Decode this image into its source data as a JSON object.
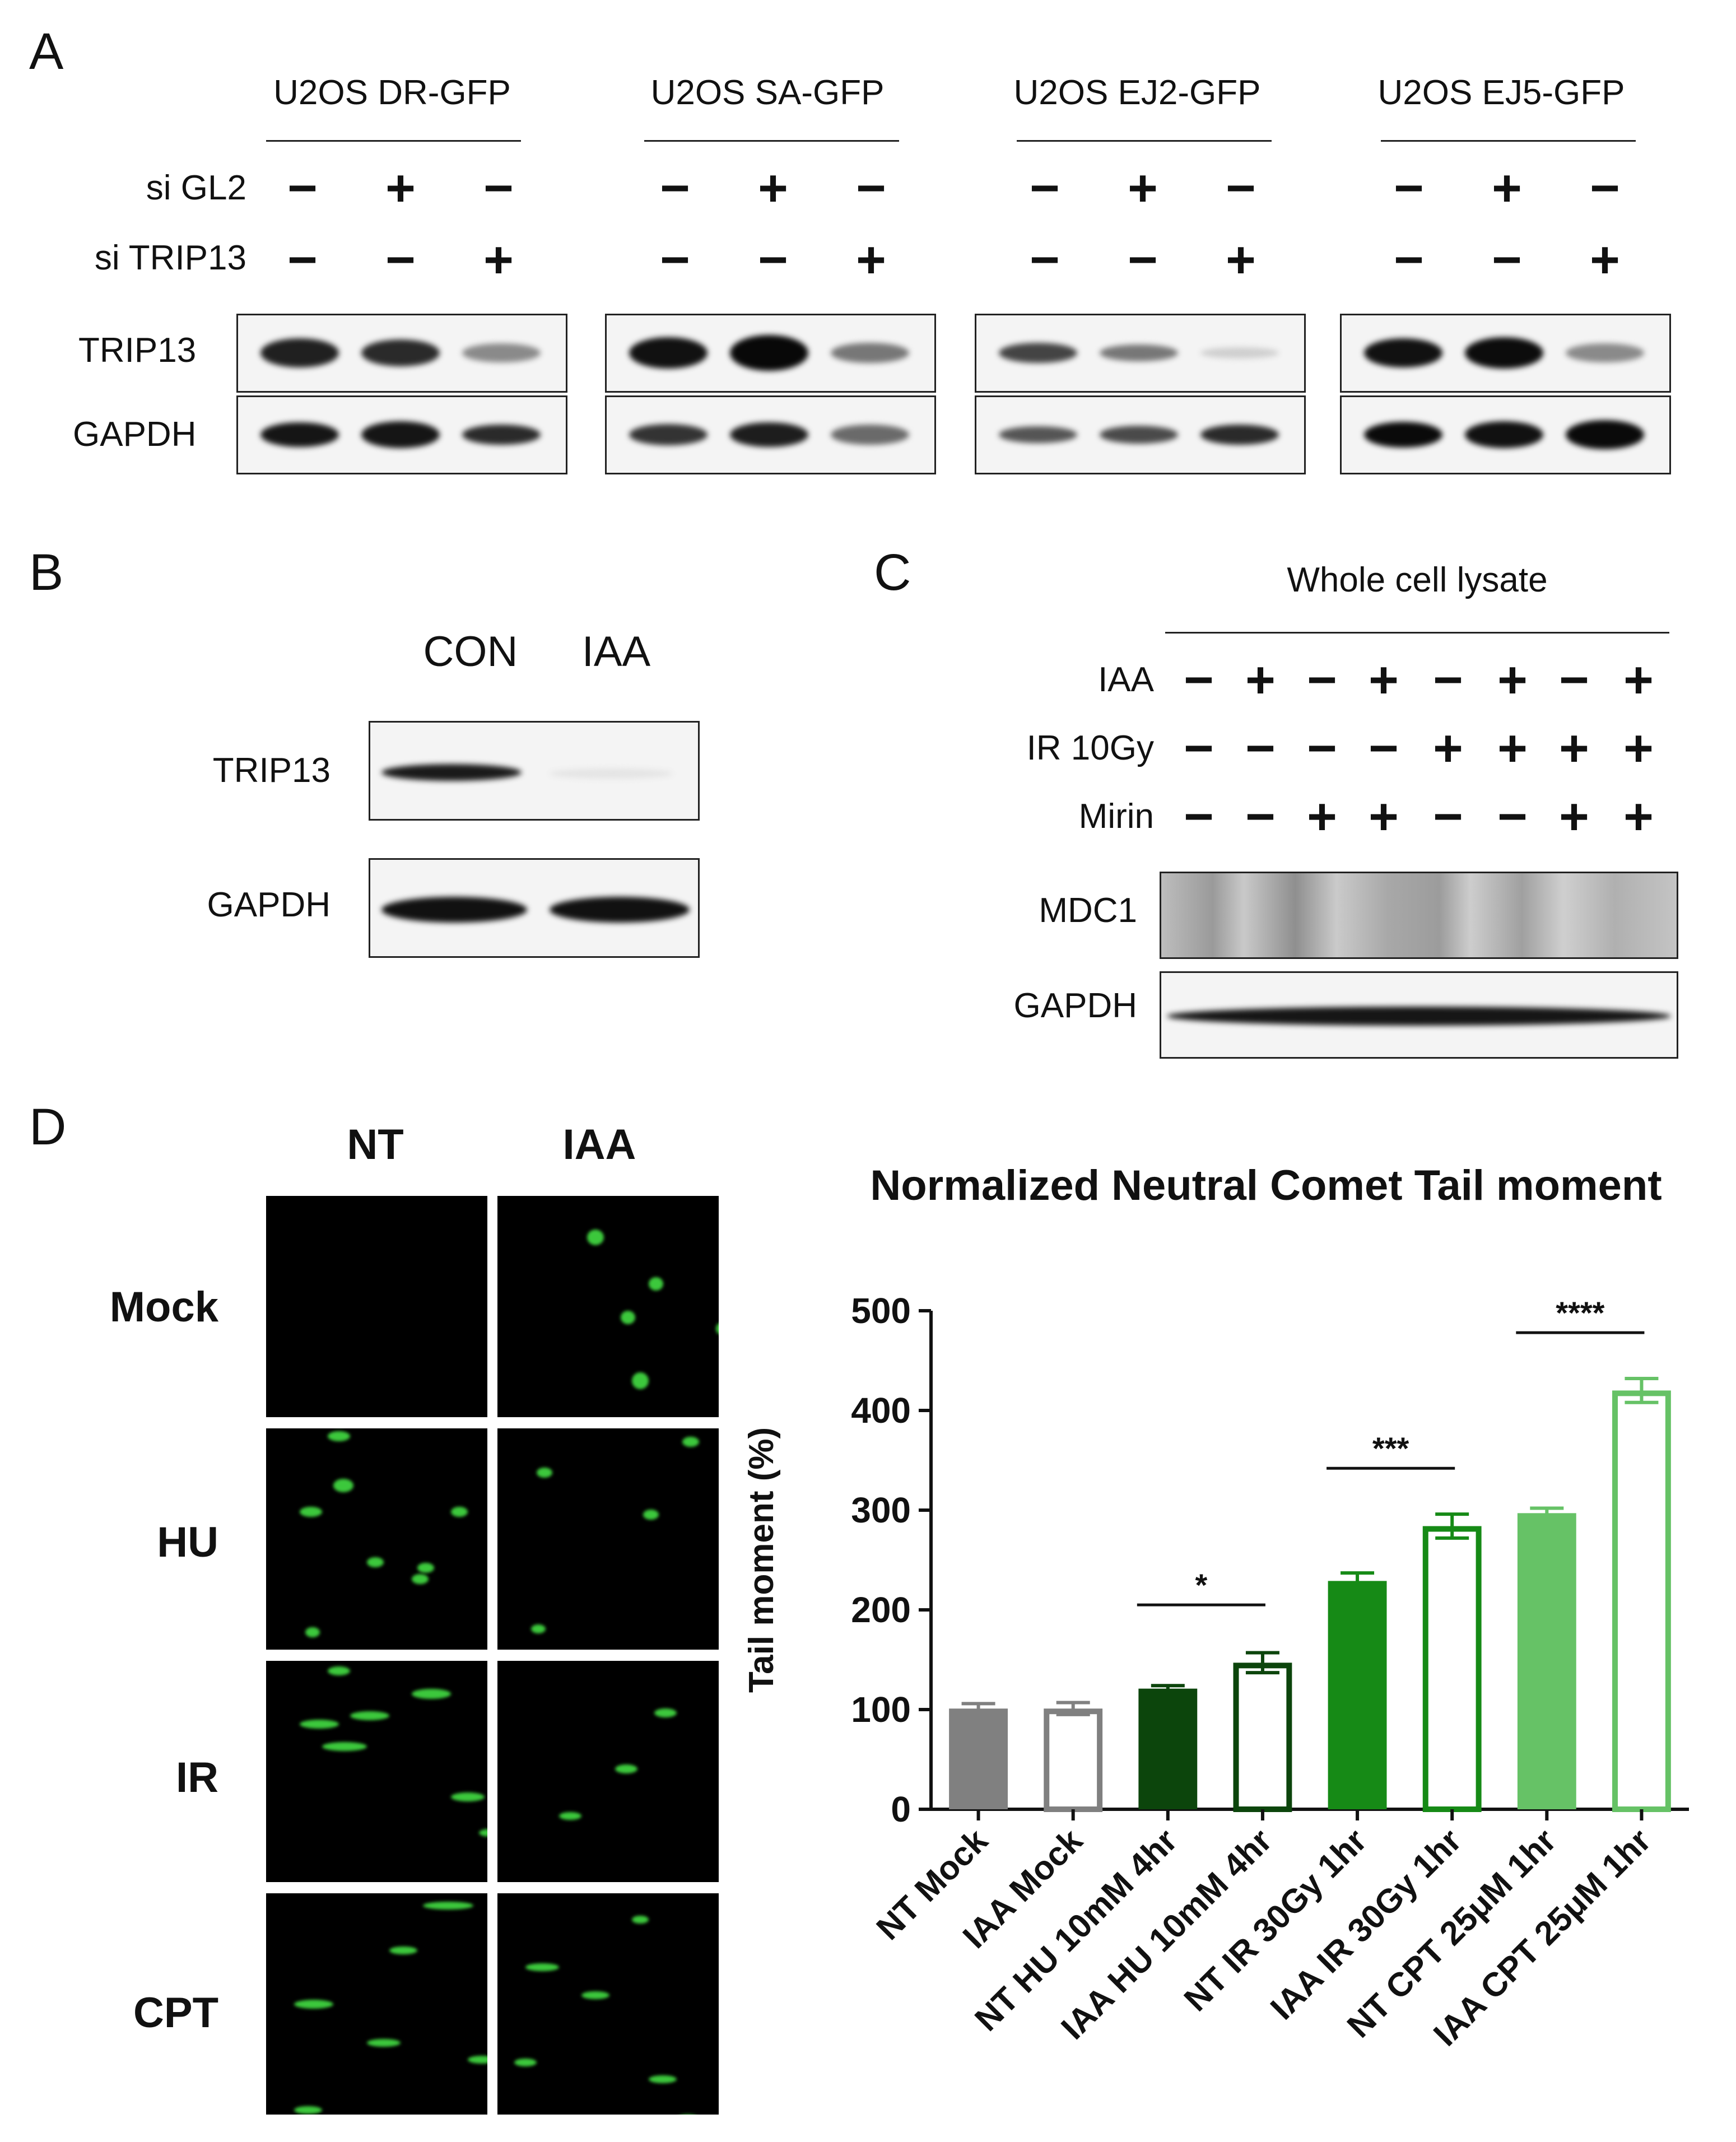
{
  "panels": {
    "A": "A",
    "B": "B",
    "C": "C",
    "D": "D"
  },
  "panelA": {
    "groups": [
      "U2OS DR-GFP",
      "U2OS SA-GFP",
      "U2OS EJ2-GFP",
      "U2OS EJ5-GFP"
    ],
    "rows": [
      "si GL2",
      "si TRIP13"
    ],
    "row_signs": [
      [
        "−",
        "+",
        "−"
      ],
      [
        "−",
        "−",
        "+"
      ]
    ],
    "blots": [
      "TRIP13",
      "GAPDH"
    ]
  },
  "panelB": {
    "columns": [
      "CON",
      "IAA"
    ],
    "blots": [
      "TRIP13",
      "GAPDH"
    ]
  },
  "panelC": {
    "header": "Whole cell lysate",
    "rows": [
      {
        "label": "IAA",
        "signs": [
          "−",
          "+",
          "−",
          "+",
          "−",
          "+",
          "−",
          "+"
        ]
      },
      {
        "label": "IR 10Gy",
        "signs": [
          "−",
          "−",
          "−",
          "−",
          "+",
          "+",
          "+",
          "+"
        ]
      },
      {
        "label": "Mirin",
        "signs": [
          "−",
          "−",
          "+",
          "+",
          "−",
          "−",
          "+",
          "+"
        ]
      }
    ],
    "blots": [
      "MDC1",
      "GAPDH"
    ]
  },
  "panelD": {
    "columns": [
      "NT",
      "IAA"
    ],
    "rows": [
      "Mock",
      "HU",
      "IR",
      "CPT"
    ]
  },
  "chart_data": {
    "type": "bar",
    "title": "Normalized Neutral Comet Tail moment",
    "ylabel": "Tail moment (%)",
    "xlabel": "",
    "ylim": [
      0,
      500
    ],
    "yticks": [
      "0",
      "100",
      "200",
      "300",
      "400",
      "500"
    ],
    "categories": [
      "NT Mock",
      "IAA Mock",
      "NT HU 10mM 4hr",
      "IAA HU 10mM 4hr",
      "NT IR 30Gy 1hr",
      "IAA IR 30Gy 1hr",
      "NT CPT 25μM 1hr",
      "IAA CPT 25μM 1hr"
    ],
    "values": [
      101,
      101,
      121,
      147,
      229,
      284,
      297,
      420
    ],
    "errors": [
      5,
      6,
      3,
      10,
      8,
      12,
      5,
      12
    ],
    "colors": [
      "#808080",
      "#808080",
      "#0c450c",
      "#0c450c",
      "#168a16",
      "#168a16",
      "#66c266",
      "#66c266"
    ],
    "filled": [
      true,
      false,
      true,
      false,
      true,
      false,
      true,
      false
    ],
    "significance": [
      {
        "from": 2,
        "to": 3,
        "label": "*",
        "y": 205
      },
      {
        "from": 4,
        "to": 5,
        "label": "***",
        "y": 342
      },
      {
        "from": 6,
        "to": 7,
        "label": "****",
        "y": 478
      }
    ]
  }
}
